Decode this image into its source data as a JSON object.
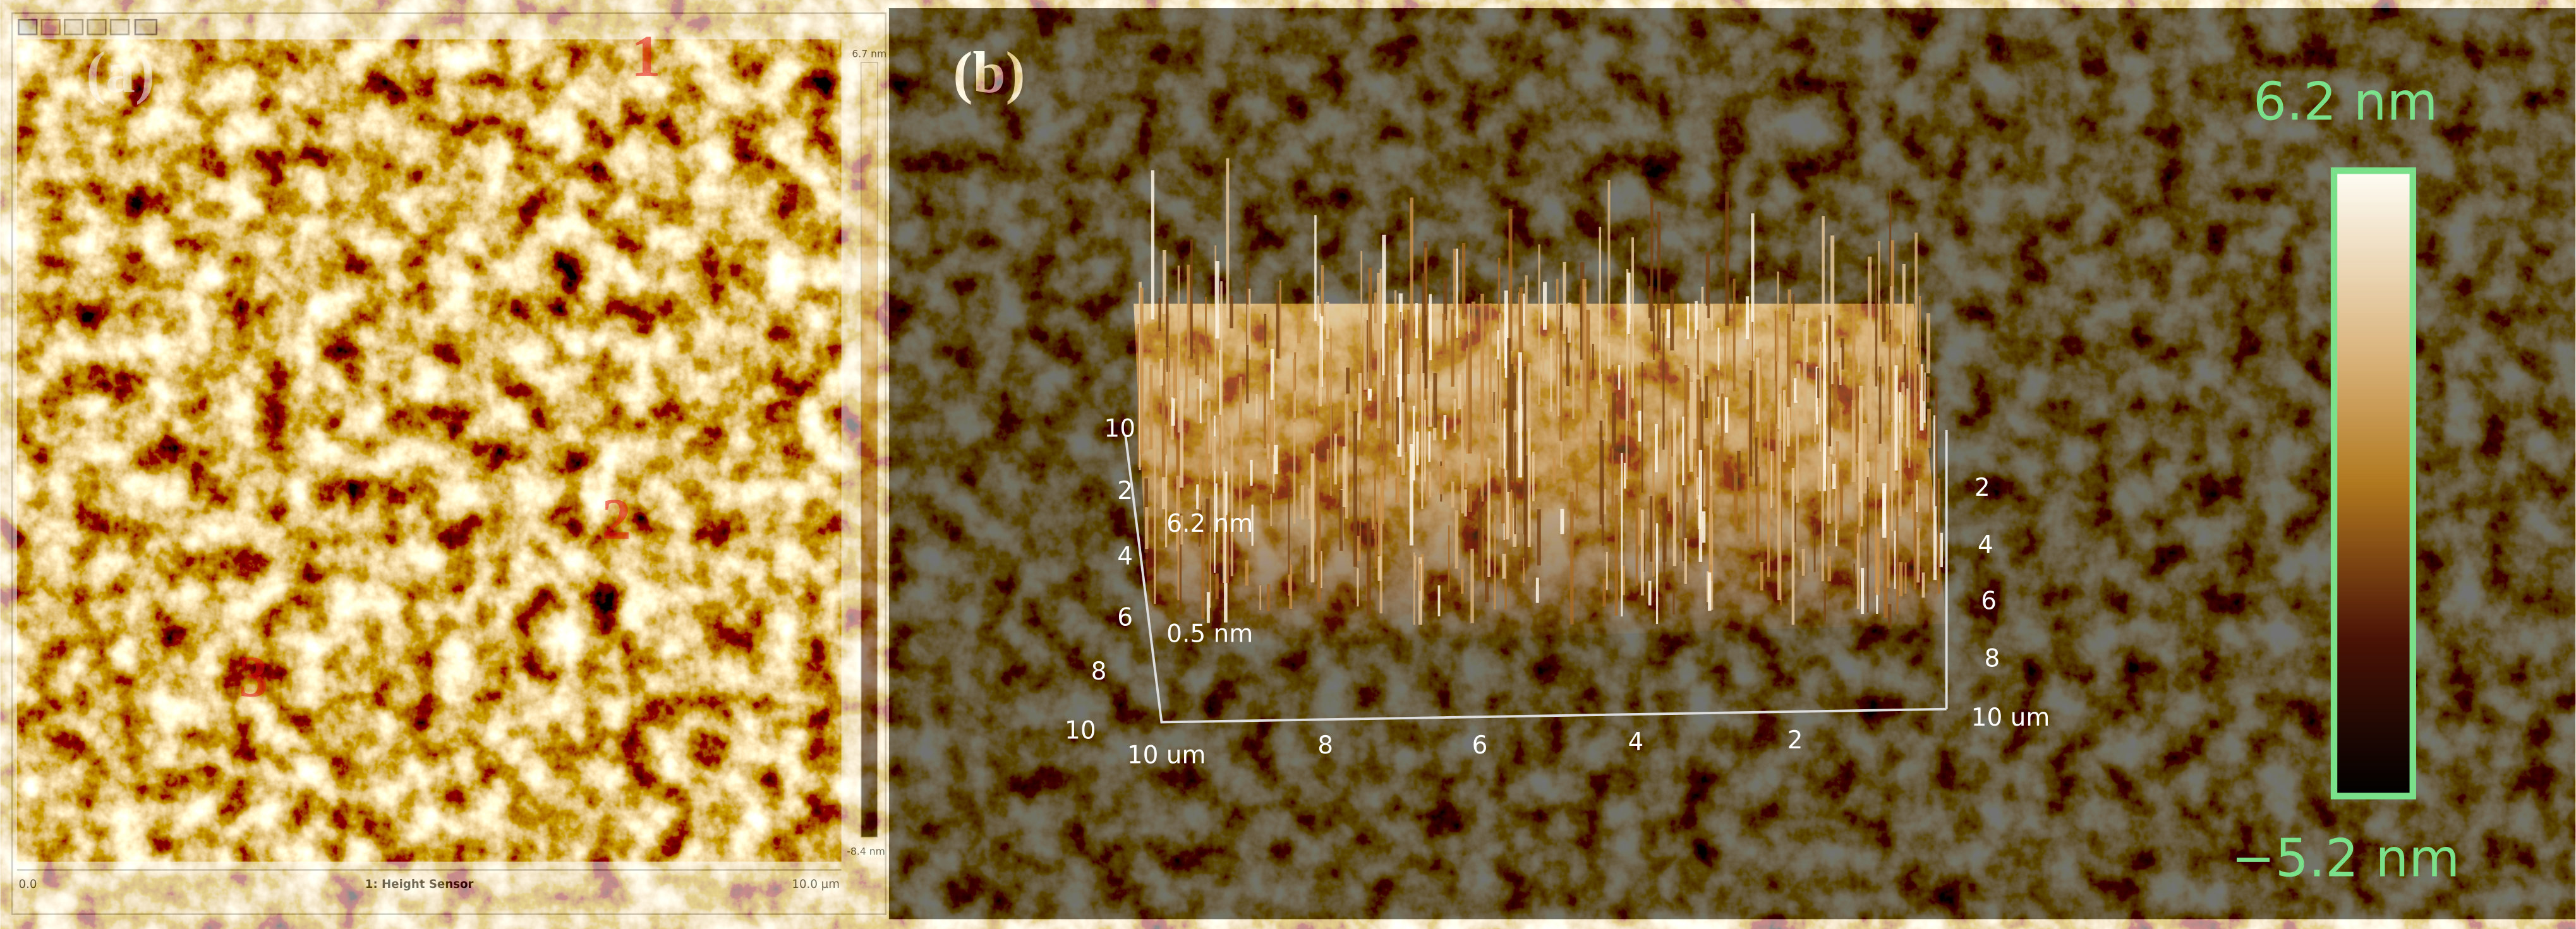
{
  "panel_a": {
    "label": "(a)",
    "markers": [
      "1",
      "2",
      "3"
    ],
    "colorbar": {
      "max": "6.7 nm",
      "min": "-8.4 nm"
    },
    "x_start": "0.0",
    "channel": "1: Height Sensor",
    "x_end": "10.0 µm"
  },
  "panel_b": {
    "label": "(b)",
    "colorbar": {
      "max": "6.2 nm",
      "min": "−5.2 nm"
    },
    "z_labels": [
      "6.2 nm",
      "0.5 nm"
    ],
    "left_axis": [
      "10",
      "2",
      "4",
      "6",
      "8",
      "10"
    ],
    "bottom_axis": [
      "10 um",
      "8",
      "6",
      "4",
      "2"
    ],
    "right_axis": [
      "2",
      "4",
      "6",
      "8",
      "10 um"
    ]
  }
}
